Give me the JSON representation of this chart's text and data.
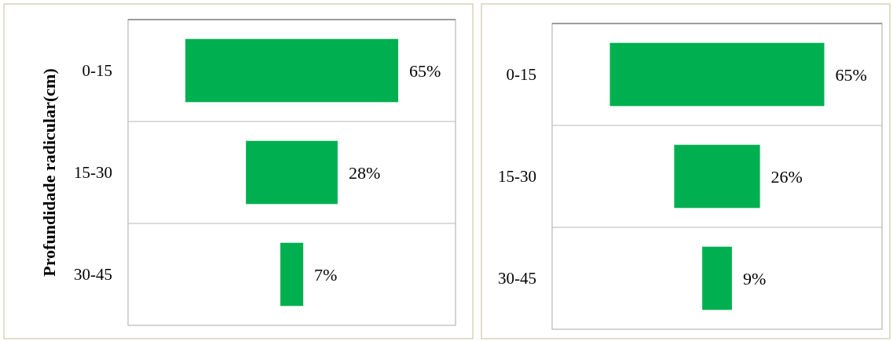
{
  "chart_data": [
    {
      "type": "other",
      "ylabel": "Profundidade radicular(cm)",
      "categories": [
        "0-15",
        "15-30",
        "30-45"
      ],
      "values": [
        65,
        28,
        7
      ],
      "value_labels": [
        "65%",
        "28%",
        "7%"
      ],
      "color": "#00b050"
    },
    {
      "type": "other",
      "categories": [
        "0-15",
        "15-30",
        "30-45"
      ],
      "values": [
        65,
        26,
        9
      ],
      "value_labels": [
        "65%",
        "26%",
        "9%"
      ],
      "color": "#00b050"
    }
  ]
}
